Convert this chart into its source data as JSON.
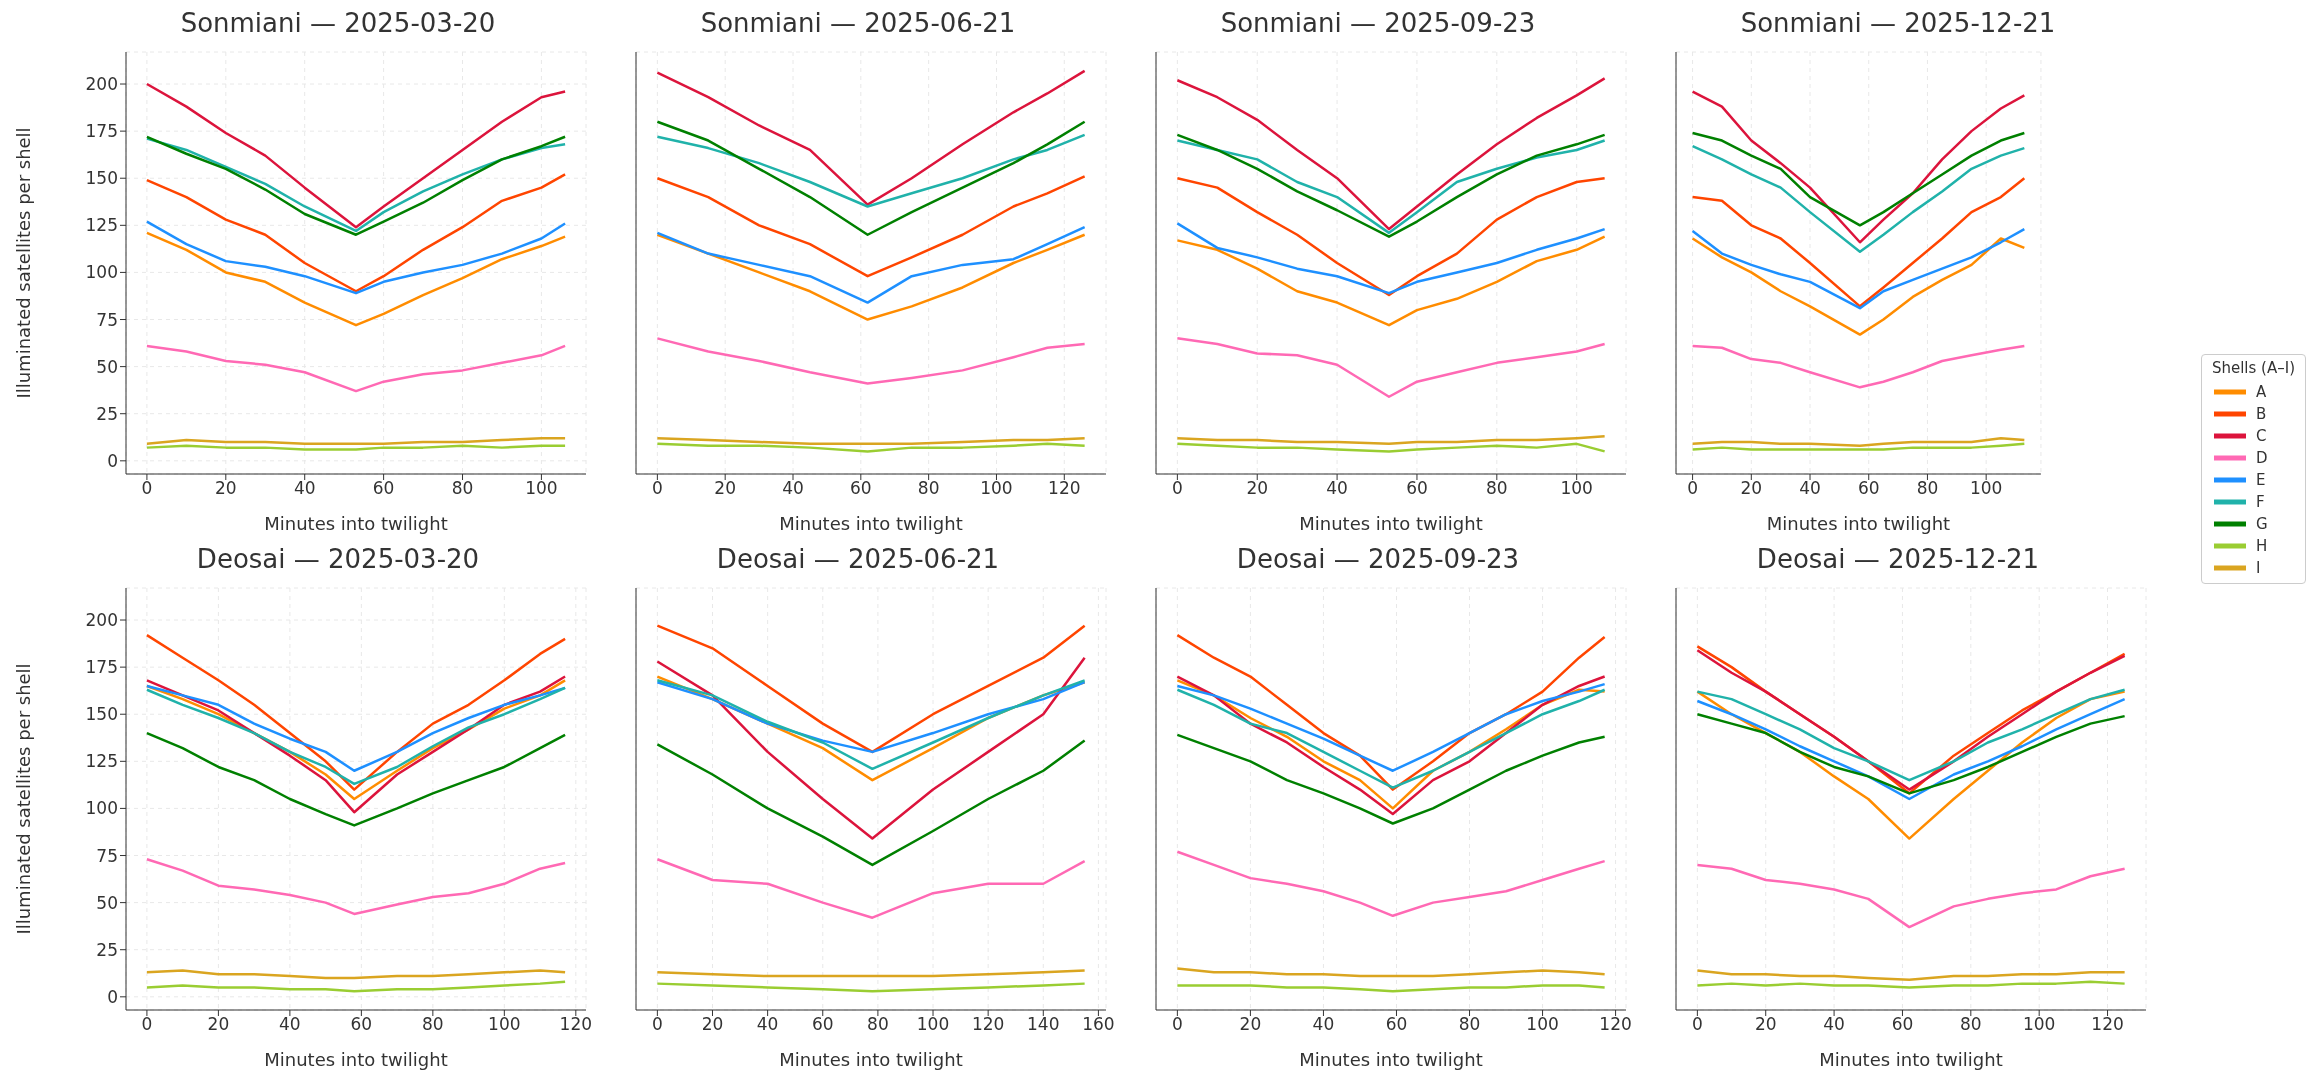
{
  "chart_data": [
    {
      "type": "line",
      "title": "Sonmiani — 2025-03-20",
      "xlabel": "Minutes into twilight",
      "ylabel": "Illuminated satellites per shell",
      "xlim": [
        -5.3,
        111.3
      ],
      "xticks": [
        0,
        20,
        40,
        60,
        80,
        100
      ],
      "ylim": [
        -7,
        217
      ],
      "yticks": [
        0,
        25,
        50,
        75,
        100,
        125,
        150,
        175,
        200
      ],
      "grid": true,
      "legend": false,
      "line_style": "solid",
      "marker": "none",
      "x": [
        0,
        10,
        20,
        30,
        40,
        53,
        60,
        70,
        80,
        90,
        100,
        106
      ],
      "series": [
        {
          "color": "#ff8c00",
          "values": [
            121,
            112,
            100,
            95,
            84,
            72,
            78,
            88,
            97,
            107,
            114,
            119
          ]
        },
        {
          "color": "#ff4500",
          "values": [
            149,
            140,
            128,
            120,
            105,
            90,
            98,
            112,
            124,
            138,
            145,
            152
          ]
        },
        {
          "color": "#dc143c",
          "values": [
            200,
            188,
            174,
            162,
            145,
            124,
            135,
            150,
            165,
            180,
            193,
            196
          ]
        },
        {
          "color": "#ff69b4",
          "values": [
            61,
            58,
            53,
            51,
            47,
            37,
            42,
            46,
            48,
            52,
            56,
            61
          ]
        },
        {
          "color": "#1e90ff",
          "values": [
            127,
            115,
            106,
            103,
            98,
            89,
            95,
            100,
            104,
            110,
            118,
            126
          ]
        },
        {
          "color": "#20b2aa",
          "values": [
            171,
            165,
            156,
            147,
            135,
            122,
            132,
            143,
            152,
            160,
            166,
            168
          ]
        },
        {
          "color": "#008000",
          "values": [
            172,
            163,
            155,
            144,
            131,
            120,
            127,
            137,
            149,
            160,
            167,
            172
          ]
        },
        {
          "color": "#9acd32",
          "values": [
            7,
            8,
            7,
            7,
            6,
            6,
            7,
            7,
            8,
            7,
            8,
            8
          ]
        },
        {
          "color": "#daa520",
          "values": [
            9,
            11,
            10,
            10,
            9,
            9,
            9,
            10,
            10,
            11,
            12,
            12
          ]
        }
      ]
    },
    {
      "type": "line",
      "title": "Sonmiani — 2025-06-21",
      "xlabel": "Minutes into twilight",
      "xlim": [
        -6.3,
        132.3
      ],
      "xticks": [
        0,
        20,
        40,
        60,
        80,
        100,
        120
      ],
      "ylim": [
        -7,
        217
      ],
      "yticks": [
        0,
        25,
        50,
        75,
        100,
        125,
        150,
        175,
        200
      ],
      "tick_labels": "x",
      "grid": true,
      "legend": false,
      "line_style": "solid",
      "marker": "none",
      "x": [
        0,
        15,
        30,
        45,
        62,
        75,
        90,
        105,
        115,
        126
      ],
      "series": [
        {
          "color": "#ff8c00",
          "values": [
            120,
            110,
            100,
            90,
            75,
            82,
            92,
            105,
            112,
            120
          ]
        },
        {
          "color": "#ff4500",
          "values": [
            150,
            140,
            125,
            115,
            98,
            108,
            120,
            135,
            142,
            151
          ]
        },
        {
          "color": "#dc143c",
          "values": [
            206,
            193,
            178,
            165,
            136,
            150,
            168,
            185,
            195,
            207
          ]
        },
        {
          "color": "#ff69b4",
          "values": [
            65,
            58,
            53,
            47,
            41,
            44,
            48,
            55,
            60,
            62
          ]
        },
        {
          "color": "#1e90ff",
          "values": [
            121,
            110,
            104,
            98,
            84,
            98,
            104,
            107,
            115,
            124
          ]
        },
        {
          "color": "#20b2aa",
          "values": [
            172,
            166,
            158,
            148,
            135,
            142,
            150,
            160,
            165,
            173
          ]
        },
        {
          "color": "#008000",
          "values": [
            180,
            170,
            155,
            140,
            120,
            132,
            145,
            158,
            168,
            180
          ]
        },
        {
          "color": "#9acd32",
          "values": [
            9,
            8,
            8,
            7,
            5,
            7,
            7,
            8,
            9,
            8
          ]
        },
        {
          "color": "#daa520",
          "values": [
            12,
            11,
            10,
            9,
            9,
            9,
            10,
            11,
            11,
            12
          ]
        }
      ]
    },
    {
      "type": "line",
      "title": "Sonmiani — 2025-09-23",
      "xlabel": "Minutes into twilight",
      "xlim": [
        -5.35,
        112.35
      ],
      "xticks": [
        0,
        20,
        40,
        60,
        80,
        100
      ],
      "ylim": [
        -7,
        217
      ],
      "yticks": [
        0,
        25,
        50,
        75,
        100,
        125,
        150,
        175,
        200
      ],
      "tick_labels": "x",
      "grid": true,
      "legend": false,
      "line_style": "solid",
      "marker": "none",
      "x": [
        0,
        10,
        20,
        30,
        40,
        53,
        60,
        70,
        80,
        90,
        100,
        107
      ],
      "series": [
        {
          "color": "#ff8c00",
          "values": [
            117,
            112,
            102,
            90,
            84,
            72,
            80,
            86,
            95,
            106,
            112,
            119
          ]
        },
        {
          "color": "#ff4500",
          "values": [
            150,
            145,
            132,
            120,
            105,
            88,
            98,
            110,
            128,
            140,
            148,
            150
          ]
        },
        {
          "color": "#dc143c",
          "values": [
            202,
            193,
            181,
            165,
            150,
            123,
            135,
            152,
            168,
            182,
            194,
            203
          ]
        },
        {
          "color": "#ff69b4",
          "values": [
            65,
            62,
            57,
            56,
            51,
            34,
            42,
            47,
            52,
            55,
            58,
            62
          ]
        },
        {
          "color": "#1e90ff",
          "values": [
            126,
            113,
            108,
            102,
            98,
            89,
            95,
            100,
            105,
            112,
            118,
            123
          ]
        },
        {
          "color": "#20b2aa",
          "values": [
            170,
            165,
            160,
            148,
            140,
            121,
            132,
            148,
            155,
            161,
            165,
            170
          ]
        },
        {
          "color": "#008000",
          "values": [
            173,
            165,
            155,
            143,
            133,
            119,
            127,
            140,
            152,
            162,
            168,
            173
          ]
        },
        {
          "color": "#9acd32",
          "values": [
            9,
            8,
            7,
            7,
            6,
            5,
            6,
            7,
            8,
            7,
            9,
            5
          ]
        },
        {
          "color": "#daa520",
          "values": [
            12,
            11,
            11,
            10,
            10,
            9,
            10,
            10,
            11,
            11,
            12,
            13
          ]
        }
      ]
    },
    {
      "type": "line",
      "title": "Sonmiani — 2025-12-21",
      "xlabel": "Minutes into twilight",
      "xlim": [
        -5.65,
        118.65
      ],
      "xticks": [
        0,
        20,
        40,
        60,
        80,
        100
      ],
      "ylim": [
        -7,
        217
      ],
      "yticks": [
        0,
        25,
        50,
        75,
        100,
        125,
        150,
        175,
        200
      ],
      "tick_labels": "x",
      "grid": true,
      "legend": "right",
      "legend_title": "Shells (A–I)",
      "line_style": "solid",
      "marker": "none",
      "x": [
        0,
        10,
        20,
        30,
        40,
        57,
        65,
        75,
        85,
        95,
        105,
        113
      ],
      "series": [
        {
          "name": "A",
          "color": "#ff8c00",
          "values": [
            118,
            108,
            100,
            90,
            82,
            67,
            75,
            87,
            96,
            104,
            118,
            113
          ]
        },
        {
          "name": "B",
          "color": "#ff4500",
          "values": [
            140,
            138,
            125,
            118,
            105,
            82,
            92,
            105,
            118,
            132,
            140,
            150
          ]
        },
        {
          "name": "C",
          "color": "#dc143c",
          "values": [
            196,
            188,
            170,
            158,
            145,
            116,
            128,
            142,
            160,
            175,
            187,
            194
          ]
        },
        {
          "name": "D",
          "color": "#ff69b4",
          "values": [
            61,
            60,
            54,
            52,
            47,
            39,
            42,
            47,
            53,
            56,
            59,
            61
          ]
        },
        {
          "name": "E",
          "color": "#1e90ff",
          "values": [
            122,
            110,
            104,
            99,
            95,
            81,
            90,
            96,
            102,
            108,
            116,
            123
          ]
        },
        {
          "name": "F",
          "color": "#20b2aa",
          "values": [
            167,
            160,
            152,
            145,
            132,
            111,
            120,
            132,
            143,
            155,
            162,
            166
          ]
        },
        {
          "name": "G",
          "color": "#008000",
          "values": [
            174,
            170,
            162,
            155,
            140,
            125,
            132,
            142,
            152,
            162,
            170,
            174
          ]
        },
        {
          "name": "H",
          "color": "#9acd32",
          "values": [
            6,
            7,
            6,
            6,
            6,
            6,
            6,
            7,
            7,
            7,
            8,
            9
          ]
        },
        {
          "name": "I",
          "color": "#daa520",
          "values": [
            9,
            10,
            10,
            9,
            9,
            8,
            9,
            10,
            10,
            10,
            12,
            11
          ]
        }
      ]
    },
    {
      "type": "line",
      "title": "Deosai — 2025-03-20",
      "xlabel": "Minutes into twilight",
      "ylabel": "Illuminated satellites per shell",
      "xlim": [
        -5.85,
        122.85
      ],
      "xticks": [
        0,
        20,
        40,
        60,
        80,
        100,
        120
      ],
      "ylim": [
        -7,
        217
      ],
      "yticks": [
        0,
        25,
        50,
        75,
        100,
        125,
        150,
        175,
        200
      ],
      "grid": true,
      "legend": false,
      "line_style": "solid",
      "marker": "none",
      "x": [
        0,
        10,
        20,
        30,
        40,
        50,
        58,
        70,
        80,
        90,
        100,
        110,
        117
      ],
      "series": [
        {
          "color": "#ff8c00",
          "values": [
            165,
            158,
            150,
            140,
            130,
            118,
            105,
            120,
            132,
            142,
            153,
            160,
            168
          ]
        },
        {
          "color": "#ff4500",
          "values": [
            192,
            180,
            168,
            155,
            140,
            125,
            110,
            130,
            145,
            155,
            168,
            182,
            190
          ]
        },
        {
          "color": "#dc143c",
          "values": [
            168,
            160,
            152,
            140,
            128,
            115,
            98,
            118,
            130,
            142,
            155,
            162,
            170
          ]
        },
        {
          "color": "#ff69b4",
          "values": [
            73,
            67,
            59,
            57,
            54,
            50,
            44,
            49,
            53,
            55,
            60,
            68,
            71
          ]
        },
        {
          "color": "#1e90ff",
          "values": [
            165,
            160,
            155,
            145,
            137,
            130,
            120,
            130,
            140,
            148,
            155,
            160,
            164
          ]
        },
        {
          "color": "#20b2aa",
          "values": [
            163,
            155,
            148,
            140,
            130,
            122,
            113,
            122,
            133,
            143,
            150,
            158,
            164
          ]
        },
        {
          "color": "#008000",
          "values": [
            140,
            132,
            122,
            115,
            105,
            97,
            91,
            100,
            108,
            115,
            122,
            132,
            139
          ]
        },
        {
          "color": "#9acd32",
          "values": [
            5,
            6,
            5,
            5,
            4,
            4,
            3,
            4,
            4,
            5,
            6,
            7,
            8
          ]
        },
        {
          "color": "#daa520",
          "values": [
            13,
            14,
            12,
            12,
            11,
            10,
            10,
            11,
            11,
            12,
            13,
            14,
            13
          ]
        }
      ]
    },
    {
      "type": "line",
      "title": "Deosai — 2025-06-21",
      "xlabel": "Minutes into twilight",
      "xlim": [
        -7.75,
        162.75
      ],
      "xticks": [
        0,
        20,
        40,
        60,
        80,
        100,
        120,
        140,
        160
      ],
      "ylim": [
        -7,
        217
      ],
      "yticks": [
        0,
        25,
        50,
        75,
        100,
        125,
        150,
        175,
        200
      ],
      "tick_labels": "x",
      "grid": true,
      "legend": false,
      "line_style": "solid",
      "marker": "none",
      "x": [
        0,
        20,
        40,
        60,
        78,
        100,
        120,
        140,
        155
      ],
      "series": [
        {
          "color": "#ff8c00",
          "values": [
            170,
            158,
            145,
            132,
            115,
            132,
            148,
            160,
            167
          ]
        },
        {
          "color": "#ff4500",
          "values": [
            197,
            185,
            165,
            145,
            130,
            150,
            165,
            180,
            197
          ]
        },
        {
          "color": "#dc143c",
          "values": [
            178,
            160,
            130,
            105,
            84,
            110,
            130,
            150,
            180
          ]
        },
        {
          "color": "#ff69b4",
          "values": [
            73,
            62,
            60,
            50,
            42,
            55,
            60,
            60,
            72
          ]
        },
        {
          "color": "#1e90ff",
          "values": [
            167,
            158,
            145,
            136,
            130,
            140,
            150,
            158,
            167
          ]
        },
        {
          "color": "#20b2aa",
          "values": [
            168,
            160,
            146,
            135,
            121,
            135,
            148,
            160,
            168
          ]
        },
        {
          "color": "#008000",
          "values": [
            134,
            118,
            100,
            85,
            70,
            88,
            105,
            120,
            136
          ]
        },
        {
          "color": "#9acd32",
          "values": [
            7,
            6,
            5,
            4,
            3,
            4,
            5,
            6,
            7
          ]
        },
        {
          "color": "#daa520",
          "values": [
            13,
            12,
            11,
            11,
            11,
            11,
            12,
            13,
            14
          ]
        }
      ]
    },
    {
      "type": "line",
      "title": "Deosai — 2025-09-23",
      "xlabel": "Minutes into twilight",
      "xlim": [
        -5.85,
        122.85
      ],
      "xticks": [
        0,
        20,
        40,
        60,
        80,
        100,
        120
      ],
      "ylim": [
        -7,
        217
      ],
      "yticks": [
        0,
        25,
        50,
        75,
        100,
        125,
        150,
        175,
        200
      ],
      "tick_labels": "x",
      "grid": true,
      "legend": false,
      "line_style": "solid",
      "marker": "none",
      "x": [
        0,
        10,
        20,
        30,
        40,
        50,
        59,
        70,
        80,
        90,
        100,
        110,
        117
      ],
      "series": [
        {
          "color": "#ff8c00",
          "values": [
            168,
            160,
            148,
            138,
            125,
            115,
            100,
            120,
            130,
            142,
            155,
            163,
            162
          ]
        },
        {
          "color": "#ff4500",
          "values": [
            192,
            180,
            170,
            155,
            140,
            128,
            110,
            125,
            140,
            150,
            162,
            180,
            191
          ]
        },
        {
          "color": "#dc143c",
          "values": [
            170,
            160,
            145,
            135,
            122,
            110,
            97,
            115,
            125,
            140,
            155,
            165,
            170
          ]
        },
        {
          "color": "#ff69b4",
          "values": [
            77,
            70,
            63,
            60,
            56,
            50,
            43,
            50,
            53,
            56,
            62,
            68,
            72
          ]
        },
        {
          "color": "#1e90ff",
          "values": [
            165,
            160,
            153,
            145,
            137,
            128,
            120,
            130,
            140,
            150,
            157,
            162,
            166
          ]
        },
        {
          "color": "#20b2aa",
          "values": [
            163,
            155,
            145,
            140,
            130,
            120,
            111,
            120,
            130,
            140,
            150,
            157,
            163
          ]
        },
        {
          "color": "#008000",
          "values": [
            139,
            132,
            125,
            115,
            108,
            100,
            92,
            100,
            110,
            120,
            128,
            135,
            138
          ]
        },
        {
          "color": "#9acd32",
          "values": [
            6,
            6,
            6,
            5,
            5,
            4,
            3,
            4,
            5,
            5,
            6,
            6,
            5
          ]
        },
        {
          "color": "#daa520",
          "values": [
            15,
            13,
            13,
            12,
            12,
            11,
            11,
            11,
            12,
            13,
            14,
            13,
            12
          ]
        }
      ]
    },
    {
      "type": "line",
      "title": "Deosai — 2025-12-21",
      "xlabel": "Minutes into twilight",
      "xlim": [
        -6.25,
        131.25
      ],
      "xticks": [
        0,
        20,
        40,
        60,
        80,
        100,
        120
      ],
      "ylim": [
        -7,
        217
      ],
      "yticks": [
        0,
        25,
        50,
        75,
        100,
        125,
        150,
        175,
        200
      ],
      "tick_labels": "x",
      "grid": true,
      "legend": false,
      "line_style": "solid",
      "marker": "none",
      "x": [
        0,
        10,
        20,
        30,
        40,
        50,
        62,
        75,
        85,
        95,
        105,
        115,
        125
      ],
      "series": [
        {
          "color": "#ff8c00",
          "values": [
            162,
            150,
            140,
            130,
            117,
            105,
            84,
            105,
            120,
            135,
            148,
            158,
            162
          ]
        },
        {
          "color": "#ff4500",
          "values": [
            186,
            175,
            162,
            150,
            138,
            125,
            108,
            128,
            140,
            152,
            162,
            172,
            182
          ]
        },
        {
          "color": "#dc143c",
          "values": [
            184,
            172,
            162,
            150,
            138,
            125,
            110,
            125,
            138,
            150,
            162,
            172,
            181
          ]
        },
        {
          "color": "#ff69b4",
          "values": [
            70,
            68,
            62,
            60,
            57,
            52,
            37,
            48,
            52,
            55,
            57,
            64,
            68
          ]
        },
        {
          "color": "#1e90ff",
          "values": [
            157,
            150,
            142,
            133,
            125,
            117,
            105,
            118,
            125,
            133,
            142,
            150,
            158
          ]
        },
        {
          "color": "#20b2aa",
          "values": [
            162,
            158,
            150,
            142,
            132,
            125,
            115,
            125,
            135,
            142,
            150,
            158,
            163
          ]
        },
        {
          "color": "#008000",
          "values": [
            150,
            145,
            140,
            130,
            122,
            117,
            108,
            115,
            122,
            130,
            138,
            145,
            149
          ]
        },
        {
          "color": "#9acd32",
          "values": [
            6,
            7,
            6,
            7,
            6,
            6,
            5,
            6,
            6,
            7,
            7,
            8,
            7
          ]
        },
        {
          "color": "#daa520",
          "values": [
            14,
            12,
            12,
            11,
            11,
            10,
            9,
            11,
            11,
            12,
            12,
            13,
            13
          ]
        }
      ]
    }
  ]
}
